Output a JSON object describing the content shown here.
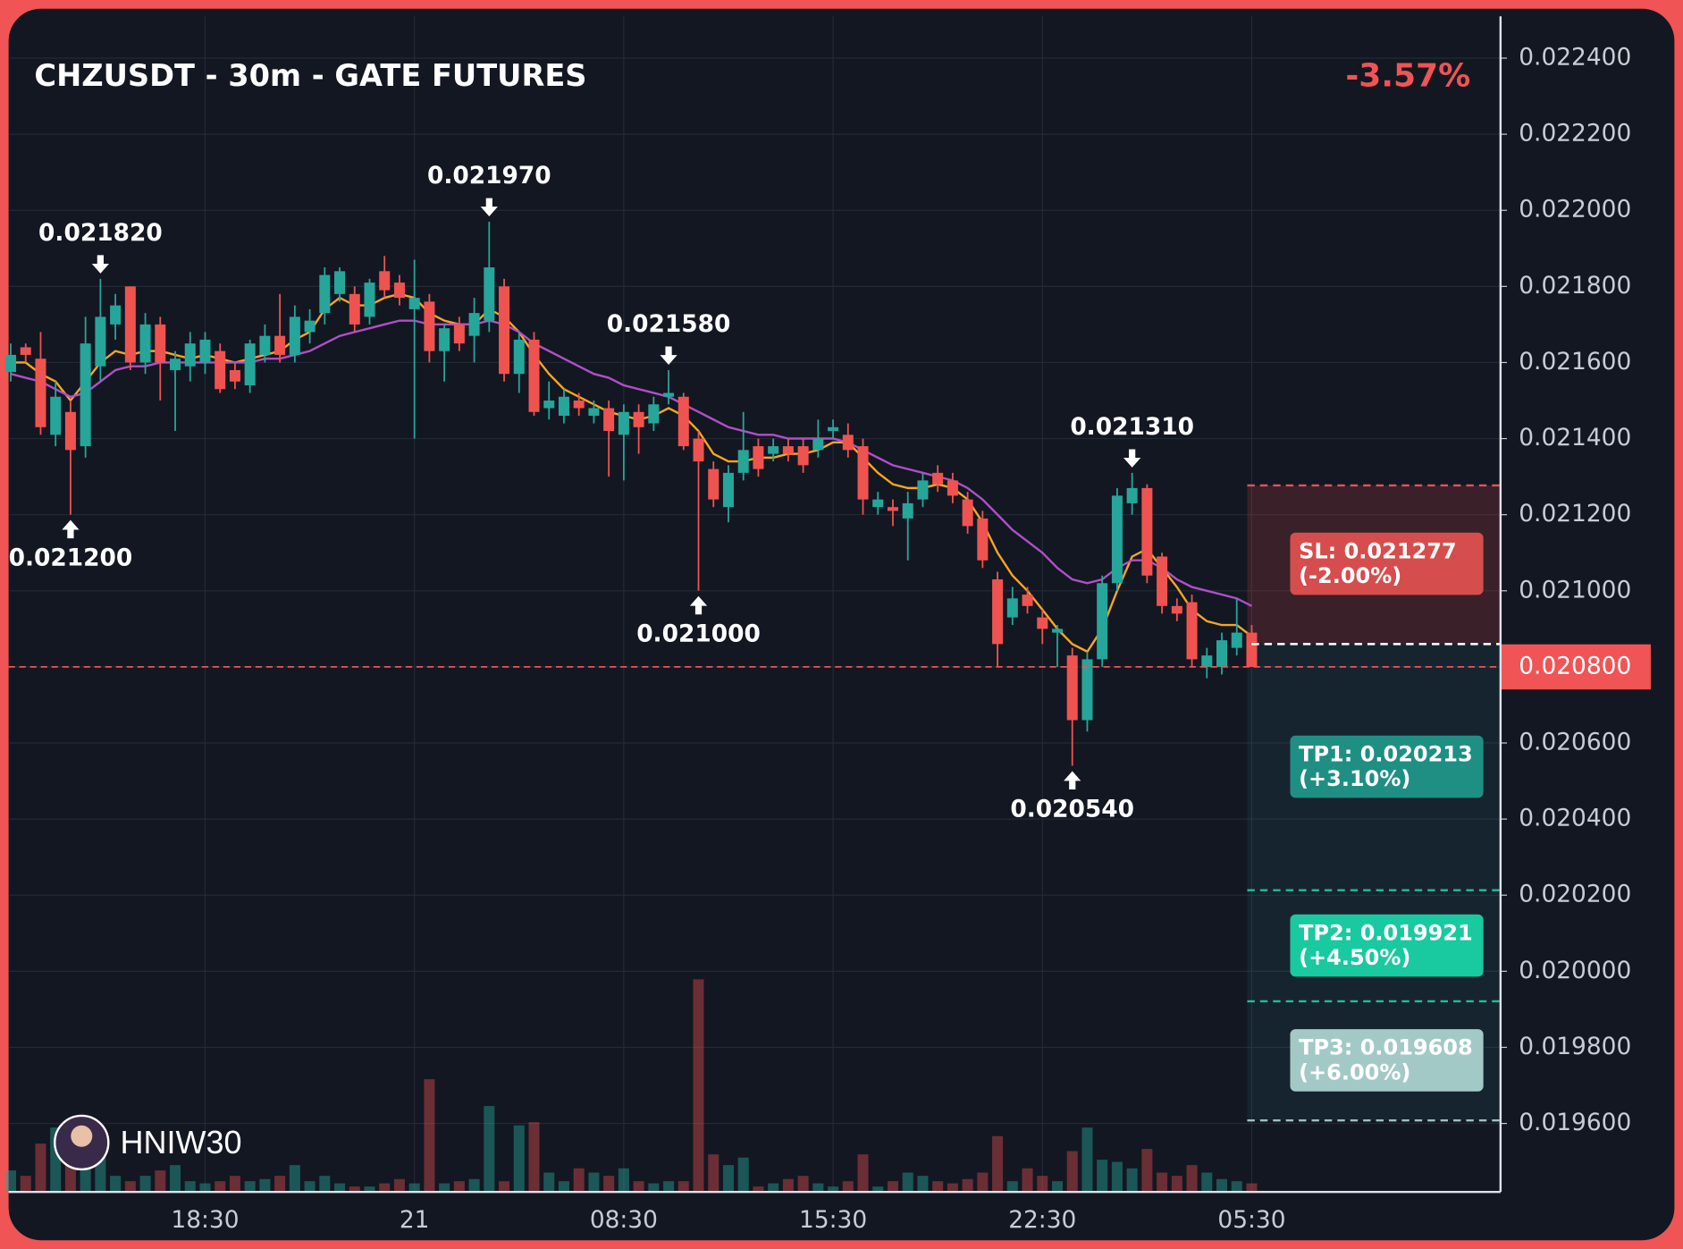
{
  "chart_data": {
    "type": "candlestick",
    "title": "CHZUSDT - 30m - GATE FUTURES",
    "change": "-3.57%",
    "watermark": "HNIW30",
    "categories": [
      null,
      null,
      null,
      null,
      null,
      null,
      null,
      null,
      null,
      null,
      null,
      null,
      null,
      "18:30",
      null,
      null,
      null,
      null,
      null,
      null,
      null,
      null,
      null,
      null,
      null,
      null,
      null,
      "21",
      null,
      null,
      null,
      null,
      null,
      null,
      null,
      null,
      null,
      null,
      null,
      null,
      null,
      "08:30",
      null,
      null,
      null,
      null,
      null,
      null,
      null,
      null,
      null,
      null,
      null,
      null,
      null,
      "15:30",
      null,
      null,
      null,
      null,
      null,
      null,
      null,
      null,
      null,
      null,
      null,
      null,
      null,
      "22:30",
      null,
      null,
      null,
      null,
      null,
      null,
      null,
      null,
      null,
      null,
      null,
      null,
      null,
      "05:30"
    ],
    "open": [
      0.021575,
      0.02164,
      0.02161,
      0.02141,
      0.02147,
      0.02138,
      0.02159,
      0.0217,
      0.0218,
      0.0216,
      0.0217,
      0.02158,
      0.02159,
      0.0216,
      0.02163,
      0.02158,
      0.02154,
      0.02162,
      0.02167,
      0.02162,
      0.02168,
      0.02173,
      0.02178,
      0.02178,
      0.02172,
      0.02184,
      0.02181,
      0.02174,
      0.02176,
      0.02163,
      0.0217,
      0.02167,
      0.02171,
      0.0218,
      0.02157,
      0.02166,
      0.02148,
      0.02146,
      0.0215,
      0.02146,
      0.02148,
      0.02141,
      0.02147,
      0.02144,
      0.02151,
      0.02151,
      0.0214,
      0.02132,
      0.02122,
      0.02131,
      0.02138,
      0.02136,
      0.02138,
      0.02138,
      0.02137,
      0.02142,
      0.02141,
      0.02138,
      0.02122,
      0.02122,
      0.02119,
      0.02124,
      0.02131,
      0.02129,
      0.02124,
      0.02119,
      0.02103,
      0.02093,
      0.02099,
      0.02093,
      0.02089,
      0.02083,
      0.02066,
      0.02082,
      0.02102,
      0.02123,
      0.02127,
      0.02109,
      0.02096,
      0.02097,
      0.0208,
      0.0208,
      0.02085,
      0.02089
    ],
    "close": [
      0.02162,
      0.02162,
      0.02143,
      0.02151,
      0.02137,
      0.02165,
      0.02172,
      0.02175,
      0.0216,
      0.0217,
      0.0216,
      0.02161,
      0.02165,
      0.02166,
      0.02153,
      0.02155,
      0.02165,
      0.02167,
      0.02162,
      0.02172,
      0.02171,
      0.02183,
      0.02184,
      0.0217,
      0.02181,
      0.02179,
      0.02177,
      0.02177,
      0.02163,
      0.02169,
      0.02165,
      0.02173,
      0.02185,
      0.02157,
      0.02166,
      0.02147,
      0.0215,
      0.02151,
      0.02148,
      0.02148,
      0.02142,
      0.02147,
      0.02143,
      0.02149,
      0.02152,
      0.02138,
      0.02134,
      0.02124,
      0.02131,
      0.02137,
      0.02132,
      0.02138,
      0.02136,
      0.02133,
      0.0214,
      0.02143,
      0.02137,
      0.02124,
      0.02124,
      0.02121,
      0.02123,
      0.02129,
      0.02128,
      0.02125,
      0.02117,
      0.02108,
      0.02086,
      0.02098,
      0.02096,
      0.0209,
      0.0209,
      0.02066,
      0.02082,
      0.02102,
      0.02125,
      0.02127,
      0.02104,
      0.02096,
      0.02094,
      0.02082,
      0.02083,
      0.02087,
      0.02089,
      0.0208
    ],
    "high": [
      0.02165,
      0.02165,
      0.02168,
      0.02155,
      0.0215,
      0.02172,
      0.02182,
      0.02178,
      0.0218,
      0.02173,
      0.02172,
      0.02163,
      0.02168,
      0.02168,
      0.02165,
      0.0216,
      0.02166,
      0.0217,
      0.02178,
      0.02175,
      0.02174,
      0.02185,
      0.02185,
      0.0218,
      0.02182,
      0.02188,
      0.02183,
      0.02187,
      0.02178,
      0.0217,
      0.02172,
      0.02177,
      0.02197,
      0.02182,
      0.02168,
      0.02168,
      0.02155,
      0.02153,
      0.02152,
      0.0215,
      0.0215,
      0.02149,
      0.02149,
      0.02151,
      0.02158,
      0.02152,
      0.02142,
      0.02134,
      0.02133,
      0.02147,
      0.0214,
      0.0214,
      0.0214,
      0.0214,
      0.02145,
      0.02145,
      0.02144,
      0.0214,
      0.02126,
      0.02124,
      0.02126,
      0.02131,
      0.02133,
      0.02131,
      0.02126,
      0.02121,
      0.02105,
      0.02101,
      0.02101,
      0.02095,
      0.02091,
      0.02085,
      0.02084,
      0.02104,
      0.02127,
      0.02131,
      0.02128,
      0.0211,
      0.02098,
      0.02099,
      0.02085,
      0.02089,
      0.02098,
      0.02091
    ],
    "low": [
      0.02155,
      0.0216,
      0.02141,
      0.02138,
      0.0212,
      0.02135,
      0.02155,
      0.02166,
      0.02158,
      0.02157,
      0.0215,
      0.02142,
      0.02155,
      0.02157,
      0.02152,
      0.02153,
      0.02152,
      0.0216,
      0.0216,
      0.0216,
      0.02165,
      0.0217,
      0.02176,
      0.02168,
      0.0217,
      0.02177,
      0.02175,
      0.0214,
      0.0216,
      0.02155,
      0.02163,
      0.0216,
      0.02168,
      0.02155,
      0.02152,
      0.02146,
      0.02145,
      0.02144,
      0.02146,
      0.02144,
      0.0213,
      0.02129,
      0.02136,
      0.02142,
      0.02149,
      0.02137,
      0.021,
      0.02122,
      0.02118,
      0.02129,
      0.0213,
      0.02134,
      0.02134,
      0.02131,
      0.02135,
      0.0214,
      0.02135,
      0.0212,
      0.0212,
      0.02117,
      0.02108,
      0.02122,
      0.02126,
      0.02123,
      0.02115,
      0.02106,
      0.0208,
      0.02091,
      0.02094,
      0.02086,
      0.0208,
      0.02054,
      0.02063,
      0.0208,
      0.021,
      0.0212,
      0.02102,
      0.02094,
      0.02092,
      0.0208,
      0.02077,
      0.02078,
      0.02083,
      0.0208
    ],
    "volume": [
      20,
      15,
      45,
      60,
      30,
      25,
      35,
      15,
      10,
      15,
      20,
      25,
      10,
      8,
      10,
      15,
      10,
      12,
      15,
      25,
      10,
      15,
      8,
      5,
      5,
      8,
      12,
      8,
      105,
      8,
      10,
      12,
      80,
      10,
      62,
      65,
      18,
      10,
      22,
      18,
      15,
      22,
      10,
      8,
      10,
      10,
      198,
      35,
      25,
      32,
      5,
      8,
      12,
      15,
      8,
      5,
      10,
      35,
      5,
      10,
      18,
      15,
      10,
      8,
      12,
      18,
      52,
      10,
      22,
      15,
      10,
      38,
      60,
      30,
      28,
      22,
      40,
      18,
      15,
      25,
      18,
      12,
      10,
      8
    ],
    "vlim": [
      0,
      400
    ],
    "up_color": "#26a69a",
    "down_color": "#ef5350",
    "ma": [
      {
        "color": "#f5a623",
        "values": [
          0.0216,
          0.0216,
          0.02157,
          0.02155,
          0.0215,
          0.02155,
          0.0216,
          0.02163,
          0.02162,
          0.02163,
          0.02163,
          0.02162,
          0.02161,
          0.02162,
          0.02161,
          0.0216,
          0.02161,
          0.02162,
          0.02163,
          0.02166,
          0.02168,
          0.02174,
          0.02177,
          0.02175,
          0.02175,
          0.02177,
          0.02178,
          0.02177,
          0.02173,
          0.02171,
          0.0217,
          0.0217,
          0.02174,
          0.02172,
          0.02168,
          0.02162,
          0.02157,
          0.02153,
          0.02151,
          0.02149,
          0.02147,
          0.02146,
          0.02145,
          0.02146,
          0.02148,
          0.02146,
          0.02142,
          0.02136,
          0.02134,
          0.02134,
          0.02135,
          0.02135,
          0.02136,
          0.02136,
          0.02137,
          0.02139,
          0.02139,
          0.02135,
          0.02131,
          0.02128,
          0.02127,
          0.02127,
          0.02128,
          0.02127,
          0.02124,
          0.02118,
          0.0211,
          0.02104,
          0.021,
          0.02095,
          0.0209,
          0.02086,
          0.02084,
          0.0209,
          0.021,
          0.02109,
          0.02111,
          0.02106,
          0.02101,
          0.02095,
          0.02092,
          0.02091,
          0.02091,
          0.02088
        ]
      },
      {
        "color": "#b04fc8",
        "values": [
          0.02157,
          0.02156,
          0.02155,
          0.02153,
          0.02151,
          0.02152,
          0.02155,
          0.02158,
          0.02159,
          0.02159,
          0.0216,
          0.0216,
          0.0216,
          0.0216,
          0.0216,
          0.0216,
          0.0216,
          0.02161,
          0.02161,
          0.02162,
          0.02163,
          0.02165,
          0.02167,
          0.02168,
          0.02169,
          0.0217,
          0.02171,
          0.02171,
          0.0217,
          0.0217,
          0.0217,
          0.0217,
          0.02171,
          0.0217,
          0.02168,
          0.02165,
          0.02163,
          0.02161,
          0.02159,
          0.02157,
          0.02156,
          0.02154,
          0.02153,
          0.02152,
          0.02151,
          0.02149,
          0.02147,
          0.02145,
          0.02143,
          0.02142,
          0.02141,
          0.02141,
          0.0214,
          0.0214,
          0.0214,
          0.0214,
          0.02139,
          0.02137,
          0.02135,
          0.02133,
          0.02132,
          0.02131,
          0.0213,
          0.02129,
          0.02127,
          0.02124,
          0.0212,
          0.02116,
          0.02113,
          0.0211,
          0.02106,
          0.02103,
          0.02102,
          0.02103,
          0.02106,
          0.02108,
          0.02108,
          0.02106,
          0.02103,
          0.02101,
          0.021,
          0.02099,
          0.02098,
          0.02096
        ]
      }
    ],
    "ylim": [
      0.01942,
      0.02251
    ],
    "yticks": [
      {
        "value": 0.0224,
        "label": "0.022400"
      },
      {
        "value": 0.0222,
        "label": "0.022200"
      },
      {
        "value": 0.022,
        "label": "0.022000"
      },
      {
        "value": 0.0218,
        "label": "0.021800"
      },
      {
        "value": 0.0216,
        "label": "0.021600"
      },
      {
        "value": 0.0214,
        "label": "0.021400"
      },
      {
        "value": 0.0212,
        "label": "0.021200"
      },
      {
        "value": 0.021,
        "label": "0.021000"
      },
      {
        "value": 0.0208,
        "label": "0.020800"
      },
      {
        "value": 0.0206,
        "label": "0.020600"
      },
      {
        "value": 0.0204,
        "label": "0.020400"
      },
      {
        "value": 0.0202,
        "label": "0.020200"
      },
      {
        "value": 0.02,
        "label": "0.020000"
      },
      {
        "value": 0.0198,
        "label": "0.019800"
      },
      {
        "value": 0.0196,
        "label": "0.019600"
      }
    ],
    "grid": true,
    "last_price": {
      "value": 0.0208,
      "label": "0.020800",
      "color": "#f05454"
    },
    "entry": 0.02086,
    "levels": [
      {
        "label": "SL: 0.021277",
        "change": "(-2.00%)",
        "value": 0.021277,
        "color": "#d64d4d",
        "line_color": "#e05555"
      },
      {
        "label": "TP1: 0.020213",
        "change": "(+3.10%)",
        "value": 0.020213,
        "color": "#1f8f84",
        "line_color": "#1fbf9a"
      },
      {
        "label": "TP2: 0.019921",
        "change": "(+4.50%)",
        "value": 0.019921,
        "color": "#19c9a0",
        "line_color": "#1fbf9a"
      },
      {
        "label": "TP3: 0.019608",
        "change": "(+6.00%)",
        "value": 0.019608,
        "color": "#a3c9c7",
        "line_color": "#a0c0c0"
      }
    ],
    "annotations": [
      {
        "label": "0.021820",
        "value": 0.02182,
        "candle": 6,
        "side": "high"
      },
      {
        "label": "0.021200",
        "value": 0.0212,
        "candle": 4,
        "side": "low"
      },
      {
        "label": "0.021970",
        "value": 0.02197,
        "candle": 32,
        "side": "high"
      },
      {
        "label": "0.021580",
        "value": 0.02158,
        "candle": 44,
        "side": "high"
      },
      {
        "label": "0.021000",
        "value": 0.021,
        "candle": 46,
        "side": "low"
      },
      {
        "label": "0.021310",
        "value": 0.02131,
        "candle": 75,
        "side": "high"
      },
      {
        "label": "0.020540",
        "value": 0.02054,
        "candle": 71,
        "side": "low"
      }
    ]
  }
}
